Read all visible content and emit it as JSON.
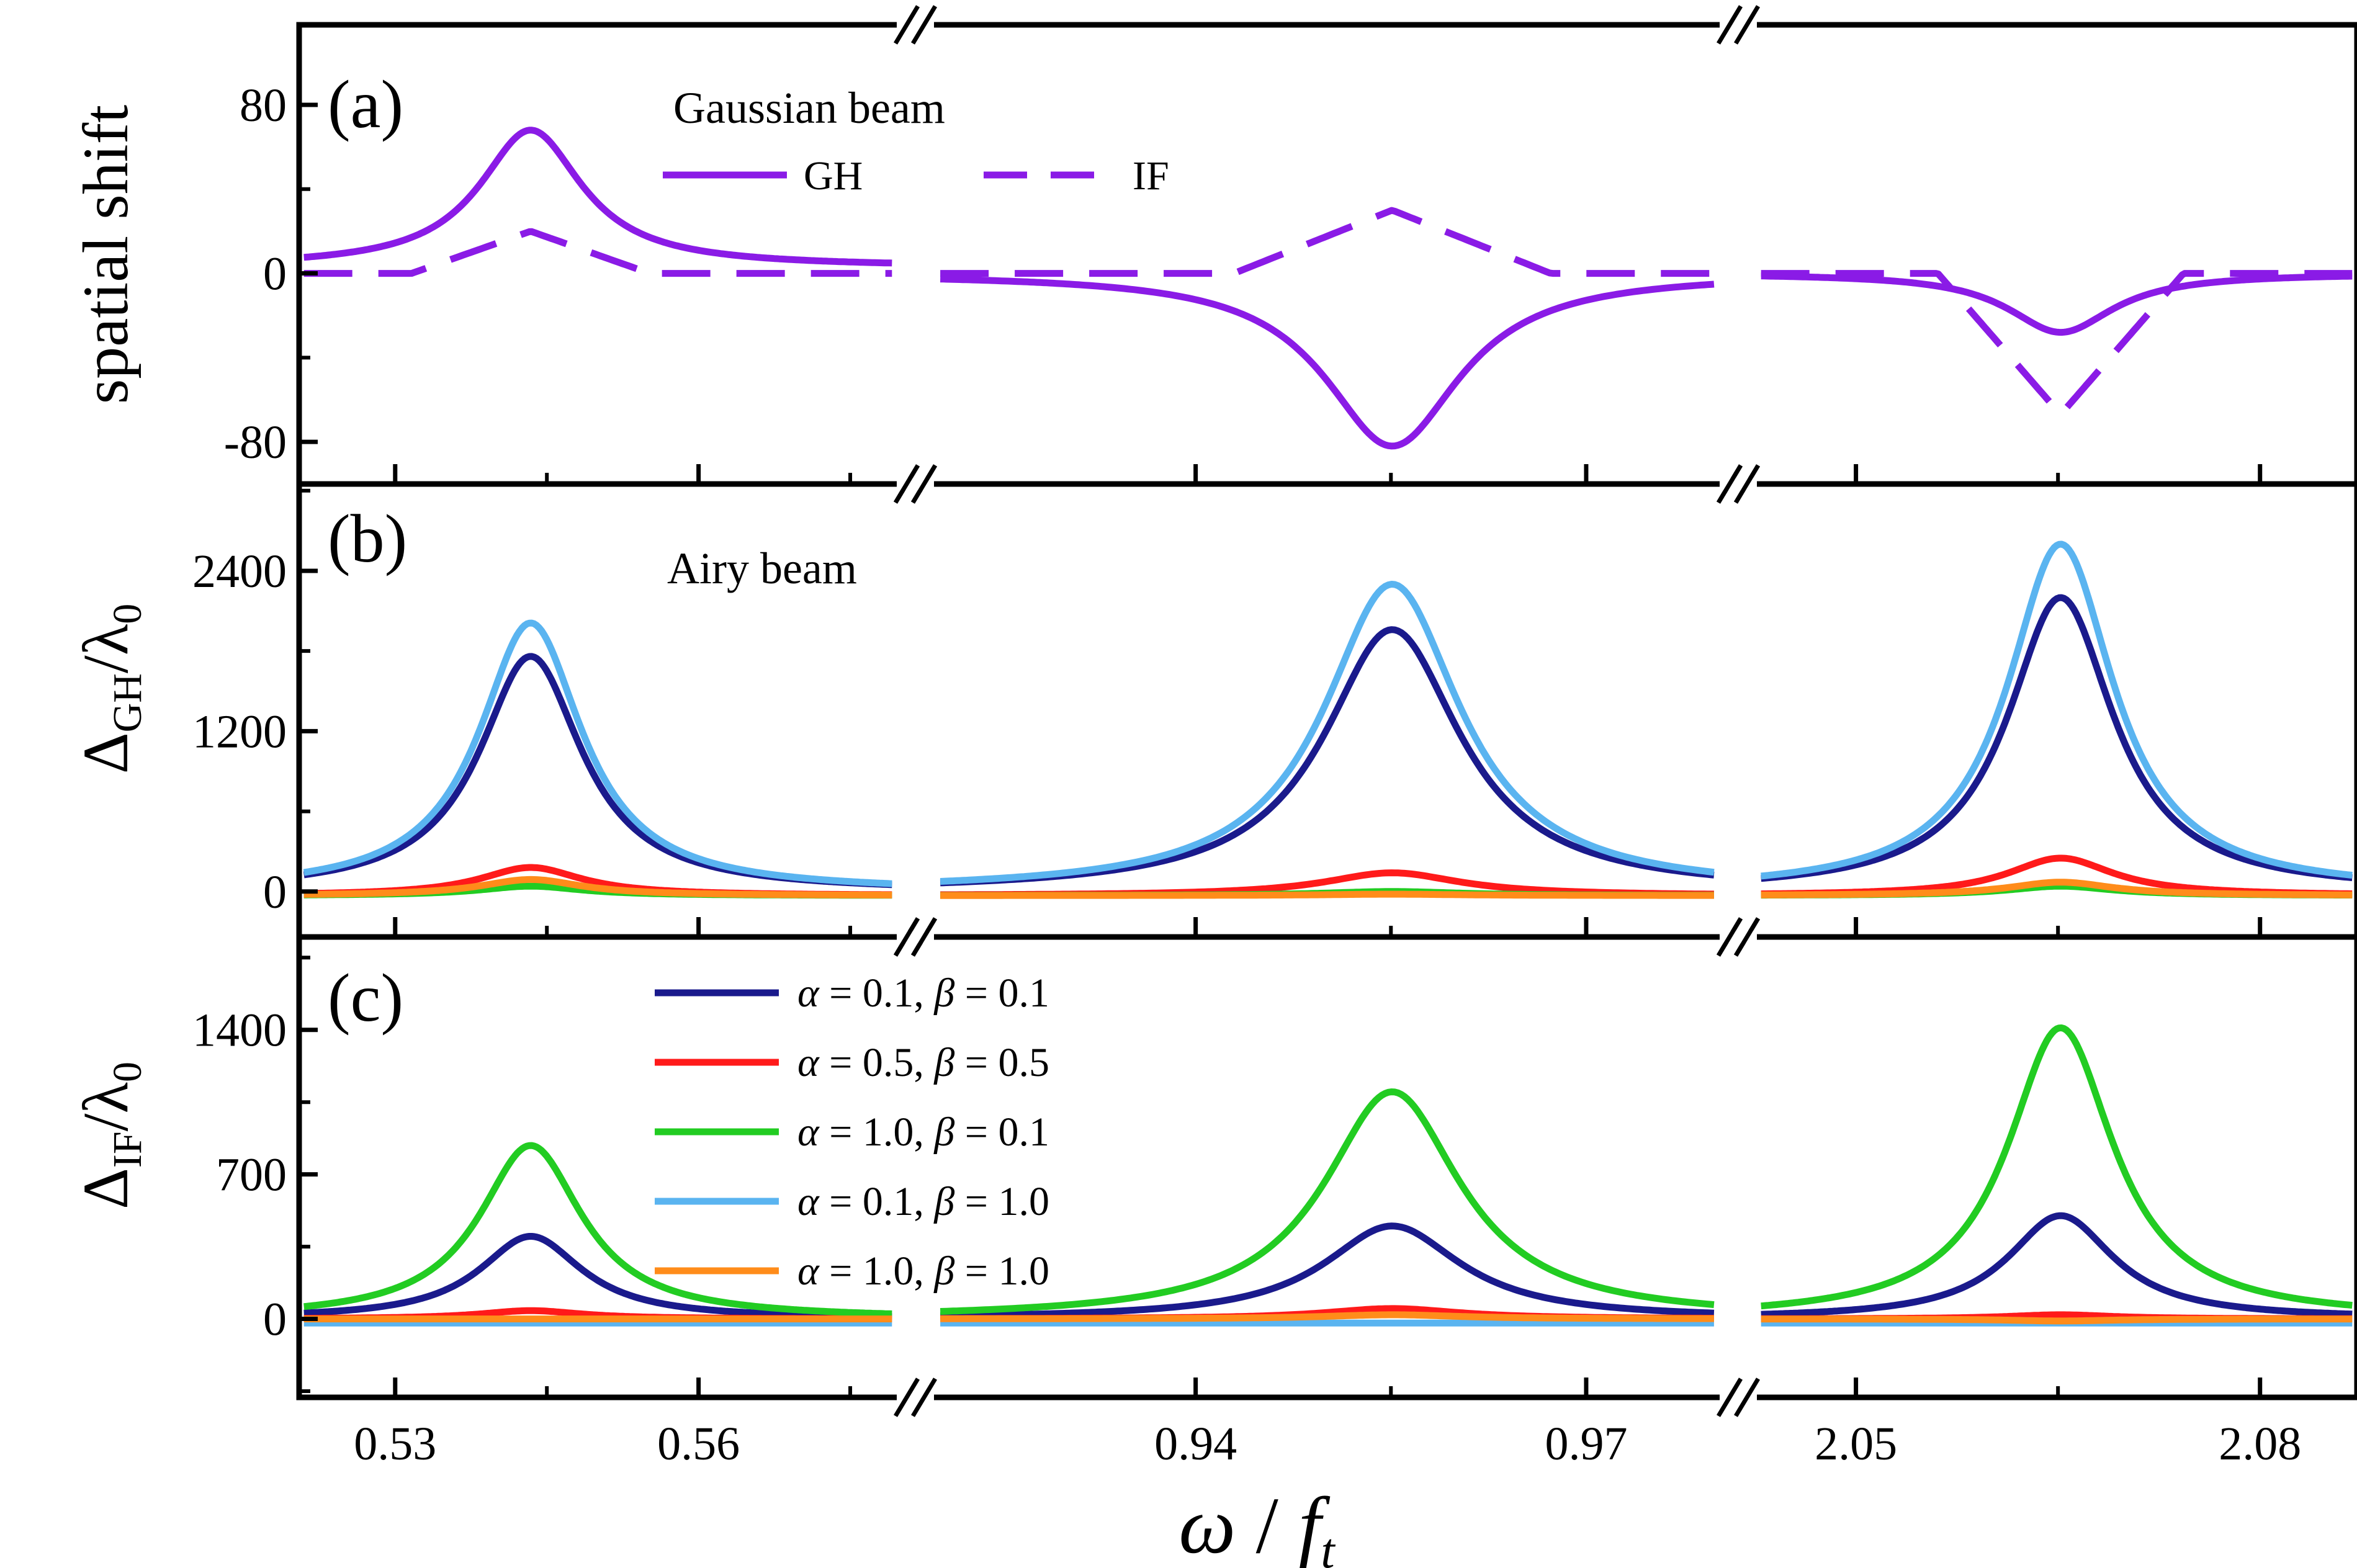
{
  "chart_data": {
    "type": "line",
    "xlabel": {
      "main": "ω",
      "sep": " / ",
      "f": "f",
      "sub": "t"
    },
    "x_segments": [
      {
        "range": [
          0.5205,
          0.5796
        ],
        "ticks": [
          0.53,
          0.56
        ],
        "tick_labels": [
          "0.53",
          "0.56"
        ]
      },
      {
        "range": [
          0.9199,
          0.9803
        ],
        "ticks": [
          0.94,
          0.97
        ],
        "tick_labels": [
          "0.94",
          "0.97"
        ]
      },
      {
        "range": [
          2.0426,
          2.0872
        ],
        "ticks": [
          2.05,
          2.08
        ],
        "tick_labels": [
          "2.05",
          "2.08"
        ]
      }
    ],
    "panels": [
      {
        "label": "(a)",
        "ylabel": "spatial shift",
        "ylim": [
          -100,
          118
        ],
        "yticks": [
          -80,
          0,
          80
        ],
        "ytick_labels": [
          "-80",
          "0",
          "80"
        ],
        "legend_heading": "Gaussian beam",
        "series": [
          {
            "name": "GH",
            "color": "#8a1be6",
            "dash": "solid",
            "peaks": [
              68,
              -82,
              -28
            ],
            "tails": [
              3,
              0,
              0
            ]
          },
          {
            "name": "IF",
            "color": "#8a1be6",
            "dash": "dashed",
            "peaks": [
              20,
              30,
              -67
            ],
            "tails": [
              0,
              0,
              0
            ]
          }
        ]
      },
      {
        "label": "(b)",
        "ylabel": {
          "main": "Δ",
          "sub": "GH",
          "rest": "/λ",
          "sub2": "0"
        },
        "ylim": [
          -340,
          3050
        ],
        "yticks": [
          0,
          1200,
          2400
        ],
        "ytick_labels": [
          "0",
          "1200",
          "2400"
        ],
        "legend_heading": "Airy beam",
        "series": [
          {
            "name": "α = 0.1, β = 0.1",
            "color": "#1a1a8c",
            "peaks": [
              1760,
              1960,
              2200
            ],
            "tails": [
              0,
              0,
              0
            ]
          },
          {
            "name": "α = 0.5, β = 0.5",
            "color": "#ff1a1a",
            "peaks": [
              180,
              140,
              250
            ],
            "tails": [
              -30,
              -30,
              -30
            ]
          },
          {
            "name": "α = 1.0, β = 0.1",
            "color": "#22cc22",
            "peaks": [
              40,
              0,
              40
            ],
            "tails": [
              -30,
              -30,
              -30
            ]
          },
          {
            "name": "α = 0.1, β = 1.0",
            "color": "#5ab4f0",
            "peaks": [
              2010,
              2300,
              2600
            ],
            "tails": [
              0,
              0,
              0
            ]
          },
          {
            "name": "α = 1.0, β = 1.0",
            "color": "#ff8c1a",
            "peaks": [
              90,
              -20,
              70
            ],
            "tails": [
              -30,
              -30,
              -30
            ]
          }
        ]
      },
      {
        "label": "(c)",
        "ylabel": {
          "main": "Δ",
          "sub": "IF",
          "rest": "/λ",
          "sub2": "0"
        },
        "ylim": [
          -380,
          1850
        ],
        "yticks": [
          0,
          700,
          1400
        ],
        "ytick_labels": [
          "0",
          "700",
          "1400"
        ],
        "series": [
          {
            "name": "α = 0.1, β = 0.1",
            "color": "#1a1a8c",
            "peaks": [
              400,
              450,
              500
            ],
            "tails": [
              0,
              0,
              0
            ]
          },
          {
            "name": "α = 0.5, β = 0.5",
            "color": "#ff1a1a",
            "peaks": [
              40,
              50,
              20
            ],
            "tails": [
              0,
              0,
              0
            ]
          },
          {
            "name": "α = 1.0, β = 0.1",
            "color": "#22cc22",
            "peaks": [
              840,
              1100,
              1410
            ],
            "tails": [
              0,
              0,
              0
            ]
          },
          {
            "name": "α = 0.1, β = 1.0",
            "color": "#5ab4f0",
            "peaks": [
              -20,
              -20,
              -20
            ],
            "tails": [
              -20,
              -20,
              -20
            ]
          },
          {
            "name": "α = 1.0, β = 1.0",
            "color": "#ff8c1a",
            "peaks": [
              0,
              20,
              -10
            ],
            "tails": [
              0,
              0,
              0
            ]
          }
        ]
      }
    ],
    "legend_entries": [
      {
        "a": "0.1",
        "b": "0.1",
        "color": "#1a1a8c"
      },
      {
        "a": "0.5",
        "b": "0.5",
        "color": "#ff1a1a"
      },
      {
        "a": "1.0",
        "b": "0.1",
        "color": "#22cc22"
      },
      {
        "a": "0.1",
        "b": "1.0",
        "color": "#5ab4f0"
      },
      {
        "a": "1.0",
        "b": "1.0",
        "color": "#ff8c1a"
      }
    ]
  }
}
